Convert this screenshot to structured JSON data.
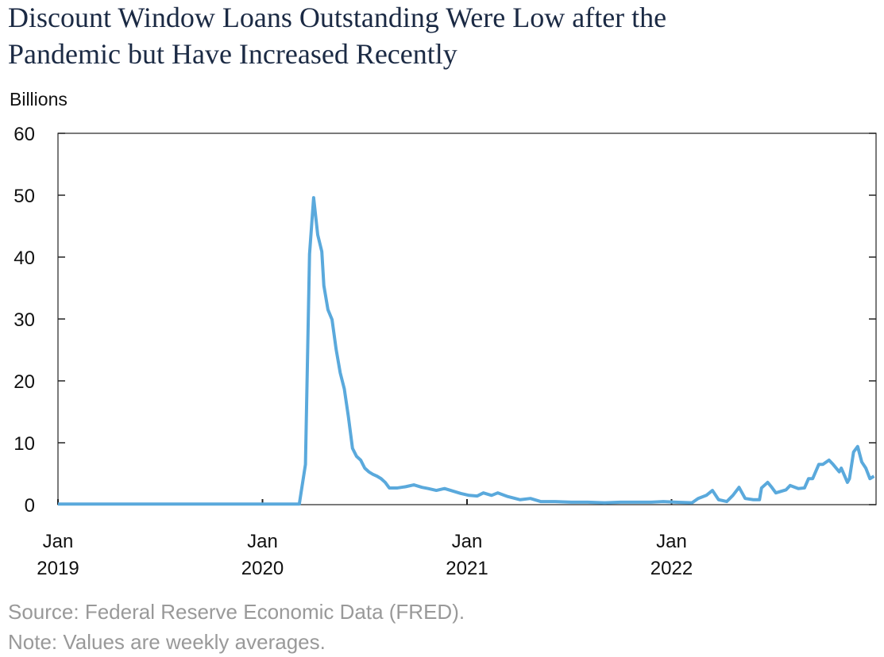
{
  "chart_data": {
    "type": "line",
    "title": "Discount Window Loans Outstanding Were Low after the Pandemic but Have Increased Recently",
    "y_label": "Billions",
    "source": "Source: Federal Reserve Economic Data (FRED).",
    "note": "Note: Values are weekly averages.",
    "xlim": [
      2019,
      2023
    ],
    "xticks": [
      {
        "value": 2019,
        "label": "Jan 2019"
      },
      {
        "value": 2020,
        "label": "Jan 2020"
      },
      {
        "value": 2021,
        "label": "Jan 2021"
      },
      {
        "value": 2022,
        "label": "Jan 2022"
      }
    ],
    "ylim": [
      0,
      60
    ],
    "yticks": [
      0,
      10,
      20,
      30,
      40,
      50,
      60
    ],
    "color": "#5aa9dc",
    "x": [
      2019.0,
      2019.5,
      2020.0,
      2020.18,
      2020.21,
      2020.23,
      2020.25,
      2020.27,
      2020.29,
      2020.3,
      2020.32,
      2020.34,
      2020.36,
      2020.38,
      2020.4,
      2020.42,
      2020.44,
      2020.46,
      2020.48,
      2020.5,
      2020.52,
      2020.54,
      2020.56,
      2020.58,
      2020.6,
      2020.62,
      2020.66,
      2020.7,
      2020.74,
      2020.78,
      2020.81,
      2020.85,
      2020.89,
      2020.93,
      2020.97,
      2021.01,
      2021.05,
      2021.08,
      2021.12,
      2021.15,
      2021.2,
      2021.26,
      2021.31,
      2021.36,
      2021.43,
      2021.51,
      2021.59,
      2021.67,
      2021.75,
      2021.82,
      2021.9,
      2021.96,
      2022.02,
      2022.1,
      2022.13,
      2022.17,
      2022.2,
      2022.23,
      2022.27,
      2022.3,
      2022.33,
      2022.36,
      2022.4,
      2022.43,
      2022.44,
      2022.47,
      2022.49,
      2022.51,
      2022.56,
      2022.58,
      2022.62,
      2022.65,
      2022.67,
      2022.69,
      2022.72,
      2022.74,
      2022.77,
      2022.79,
      2022.82,
      2022.83,
      2022.86,
      2022.87,
      2022.89,
      2022.91,
      2022.93,
      2022.95,
      2022.97,
      2022.99
    ],
    "values": [
      0.1,
      0.1,
      0.1,
      0.1,
      6.5,
      40.5,
      49.6,
      43.6,
      40.9,
      35.4,
      31.5,
      29.9,
      25.1,
      21.3,
      18.7,
      14.2,
      9.1,
      7.8,
      7.2,
      5.9,
      5.3,
      4.9,
      4.6,
      4.2,
      3.6,
      2.7,
      2.7,
      2.9,
      3.2,
      2.8,
      2.6,
      2.3,
      2.6,
      2.2,
      1.8,
      1.5,
      1.4,
      1.9,
      1.5,
      1.9,
      1.3,
      0.8,
      1.0,
      0.5,
      0.5,
      0.4,
      0.4,
      0.3,
      0.4,
      0.4,
      0.4,
      0.5,
      0.4,
      0.3,
      1.0,
      1.5,
      2.3,
      0.8,
      0.5,
      1.5,
      2.8,
      1.0,
      0.8,
      0.8,
      2.7,
      3.6,
      2.8,
      1.9,
      2.4,
      3.1,
      2.6,
      2.7,
      4.2,
      4.2,
      6.5,
      6.5,
      7.2,
      6.5,
      5.3,
      5.9,
      3.6,
      4.2,
      8.5,
      9.4,
      6.9,
      5.9,
      4.2,
      4.6
    ]
  }
}
